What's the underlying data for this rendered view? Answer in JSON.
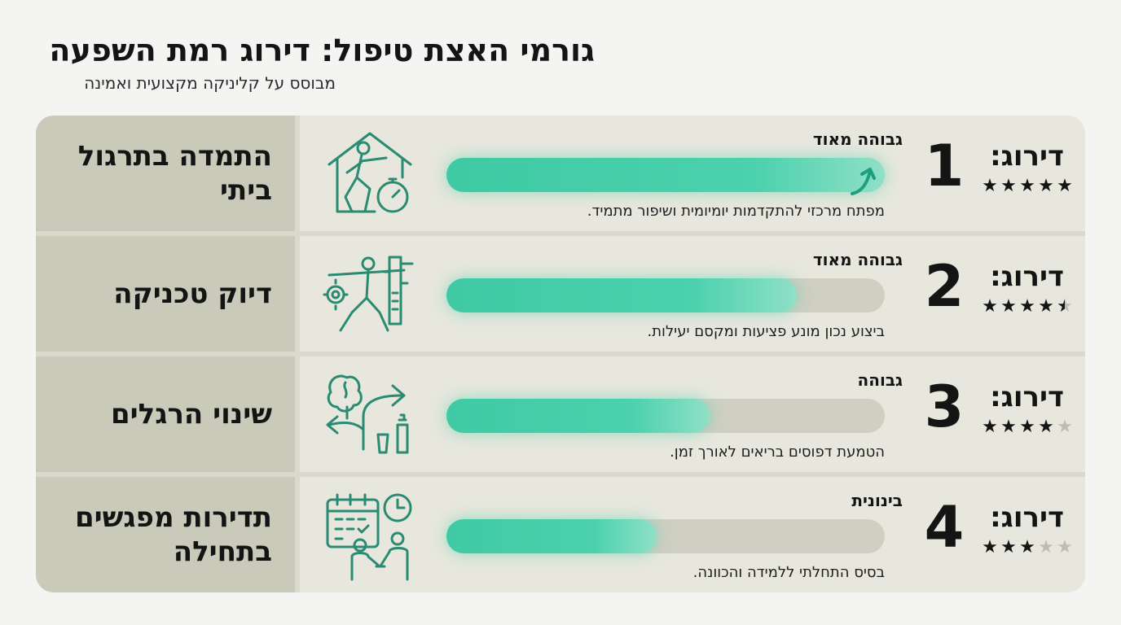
{
  "header": {
    "title": "גורמי האצת טיפול: דירוג רמת השפעה",
    "subtitle": "מבוסס על קליניקה מקצועית ואמינה"
  },
  "colors": {
    "accent": "#3fcaa4",
    "factor_bg": "#c9cab9",
    "row_bg": "#e7e7dd",
    "icon": "#2a8a72"
  },
  "rows": [
    {
      "factor": "התמדה בתרגול ביתי",
      "icon": "home-exercise-stopwatch-icon",
      "level": "גבוהה מאוד",
      "fill_percent": 100,
      "trend_arrow": true,
      "description": "מפתח מרכזי להתקדמות יומיומית ושיפור מתמיד.",
      "rank_label": "דירוג:",
      "rank": "1",
      "rating": 5
    },
    {
      "factor": "דיוק טכניקה",
      "icon": "precision-posture-caliper-icon",
      "level": "גבוהה מאוד",
      "fill_percent": 80,
      "trend_arrow": false,
      "description": "ביצוע נכון מונע פציעות ומקסם יעילות.",
      "rank_label": "דירוג:",
      "rank": "2",
      "rating": 4.5
    },
    {
      "factor": "שינוי הרגלים",
      "icon": "brain-habit-change-icon",
      "level": "גבוהה",
      "fill_percent": 60,
      "trend_arrow": false,
      "description": "הטמעת דפוסים בריאים לאורך זמן.",
      "rank_label": "דירוג:",
      "rank": "3",
      "rating": 4
    },
    {
      "factor": "תדירות מפגשים בתחילה",
      "icon": "calendar-clock-meeting-icon",
      "level": "בינונית",
      "fill_percent": 48,
      "trend_arrow": false,
      "description": "בסיס התחלתי ללמידה והכוונה.",
      "rank_label": "דירוג:",
      "rank": "4",
      "rating": 3
    }
  ]
}
